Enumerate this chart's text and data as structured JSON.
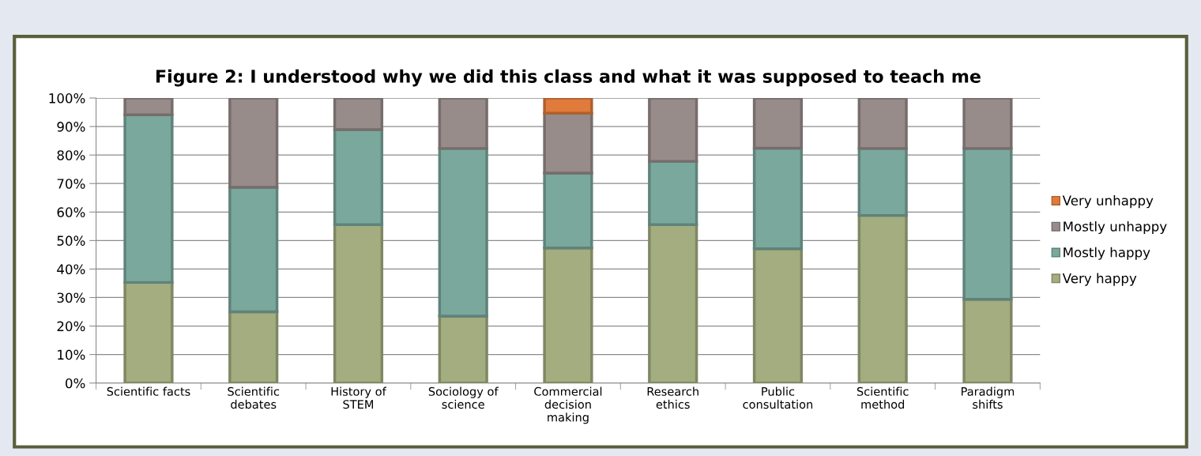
{
  "chart_data": {
    "type": "bar",
    "stacked": true,
    "title": "Figure 2: I understood why we did this class and what it was supposed to teach me",
    "categories": [
      "Scientific facts",
      "Scientific\ndebates",
      "History of\nSTEM",
      "Sociology of\nscience",
      "Commercial\ndecision\nmaking",
      "Research\nethics",
      "Public\nconsultation",
      "Scientific\nmethod",
      "Paradigm\nshifts"
    ],
    "series": [
      {
        "name": "Very happy",
        "color": "#a3ad7f",
        "values": [
          35.3,
          25,
          55.6,
          23.5,
          47.4,
          55.6,
          47.1,
          58.8,
          29.4
        ]
      },
      {
        "name": "Mostly happy",
        "color": "#7aa89c",
        "values": [
          58.8,
          43.7,
          33.3,
          58.8,
          26.3,
          22.2,
          35.3,
          23.5,
          52.9
        ]
      },
      {
        "name": "Mostly unhappy",
        "color": "#978c8a",
        "values": [
          5.9,
          31.3,
          11.1,
          17.7,
          21.0,
          22.2,
          17.6,
          17.7,
          17.7
        ]
      },
      {
        "name": "Very unhappy",
        "color": "#e07b3c",
        "values": [
          null,
          null,
          null,
          null,
          5.3,
          null,
          null,
          null,
          null
        ]
      }
    ],
    "ylim": [
      0,
      100
    ],
    "yticks": [
      {
        "value": 0,
        "label": "0%"
      },
      {
        "value": 10,
        "label": "10%"
      },
      {
        "value": 20,
        "label": "20%"
      },
      {
        "value": 30,
        "label": "30%"
      },
      {
        "value": 40,
        "label": "40%"
      },
      {
        "value": 50,
        "label": "50%"
      },
      {
        "value": 60,
        "label": "60%"
      },
      {
        "value": 70,
        "label": "70%"
      },
      {
        "value": 80,
        "label": "80%"
      },
      {
        "value": 90,
        "label": "90%"
      },
      {
        "value": 100,
        "label": "100%"
      }
    ],
    "grid": "y",
    "legend": "right"
  }
}
